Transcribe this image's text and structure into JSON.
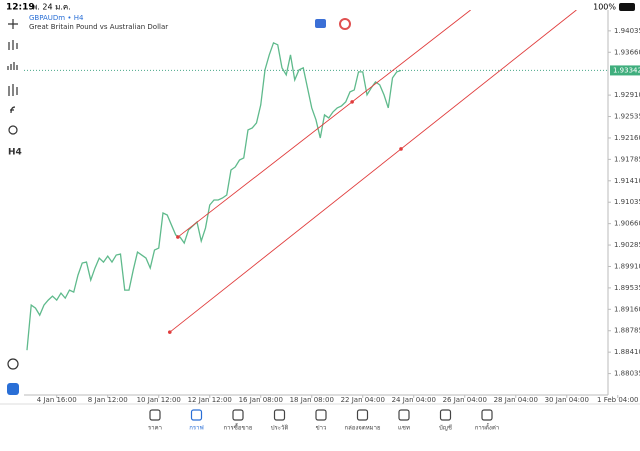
{
  "status_bar": {
    "time": "12:19",
    "date": "พ. 24 ม.ค.",
    "battery": "100%"
  },
  "chart_data": {
    "type": "line",
    "title": "GBPAUDm • H4",
    "subtitle": "Great Britain Pound vs Australian Dollar",
    "series": [
      {
        "name": "GBPAUDm",
        "color": "#5fba8c",
        "values": [
          1.88445,
          1.89234,
          1.89181,
          1.89058,
          1.89234,
          1.89321,
          1.89391,
          1.89321,
          1.89444,
          1.89356,
          1.89496,
          1.89461,
          1.89759,
          1.8997,
          1.89987,
          1.89672,
          1.89882,
          1.90057,
          1.89987,
          1.90092,
          1.89987,
          1.9011,
          1.90127,
          1.89496,
          1.89496,
          1.89847,
          1.90162,
          1.9011,
          1.90057,
          1.89882,
          1.90197,
          1.90232,
          1.90846,
          1.90811,
          1.90635,
          1.9046,
          1.90425,
          1.9032,
          1.90548,
          1.90618,
          1.90688,
          1.90355,
          1.90583,
          1.90986,
          1.91074,
          1.91074,
          1.91109,
          1.91161,
          1.91599,
          1.91652,
          1.91774,
          1.9181,
          1.923,
          1.92335,
          1.92423,
          1.92738,
          1.93352,
          1.93614,
          1.93825,
          1.9379,
          1.93387,
          1.93264,
          1.93614,
          1.93176,
          1.93352,
          1.93387,
          1.93036,
          1.92686,
          1.92475,
          1.9216,
          1.92563,
          1.9251,
          1.92616,
          1.92686,
          1.92721,
          1.92791,
          1.92966,
          1.93001,
          1.93317,
          1.93317,
          1.92914,
          1.93036,
          1.93141,
          1.93089,
          1.92914,
          1.92686,
          1.93211,
          1.93317,
          1.93342
        ]
      }
    ],
    "current_price": 1.93342,
    "trendlines": [
      {
        "color": "#e03c3c",
        "points": [
          [
            35.5,
            1.90425
          ],
          [
            76.5,
            1.92791
          ]
        ]
      },
      {
        "color": "#e03c3c",
        "points": [
          [
            33.6,
            1.8876
          ],
          [
            88,
            1.91967
          ]
        ]
      }
    ],
    "xlim": [
      -0.7,
      136.7
    ],
    "xticks": [
      {
        "value": 7,
        "label": "4 Jan 16:00"
      },
      {
        "value": 19,
        "label": "8 Jan 12:00"
      },
      {
        "value": 31,
        "label": "10 Jan 12:00"
      },
      {
        "value": 43,
        "label": "12 Jan 12:00"
      },
      {
        "value": 55,
        "label": "16 Jan 08:00"
      },
      {
        "value": 67,
        "label": "18 Jan 08:00"
      },
      {
        "value": 79,
        "label": "22 Jan 04:00"
      },
      {
        "value": 91,
        "label": "24 Jan 04:00"
      },
      {
        "value": 103,
        "label": "26 Jan 04:00"
      },
      {
        "value": 115,
        "label": "28 Jan 04:00"
      },
      {
        "value": 127,
        "label": "30 Jan 04:00"
      },
      {
        "value": 139,
        "label": "1 Feb 04:00"
      }
    ],
    "ylim": [
      1.8766,
      1.944
    ],
    "yticks": [
      1.94035,
      {
        "value": 1.9366,
        "label": "1.93660"
      },
      {
        "value": 1.9291,
        "label": "1.92910"
      },
      1.92535,
      {
        "value": 1.9216,
        "label": "1.92160"
      },
      1.91785,
      {
        "value": 1.9141,
        "label": "1.91410"
      },
      1.91035,
      {
        "value": 1.9066,
        "label": "1.90660"
      },
      1.90285,
      {
        "value": 1.8991,
        "label": "1.89910"
      },
      1.89535,
      {
        "value": 1.8916,
        "label": "1.89160"
      },
      1.88785,
      {
        "value": 1.8841,
        "label": "1.88410"
      },
      1.88035
    ]
  },
  "tabs": [
    "ราคา",
    "กราฟ",
    "การซื้อขาย",
    "ประวัติ",
    "ข่าว",
    "กล่องจดหมาย",
    "แชท",
    "บัญชี",
    "การตั้งค่า"
  ],
  "toolbar": [
    "H4"
  ]
}
